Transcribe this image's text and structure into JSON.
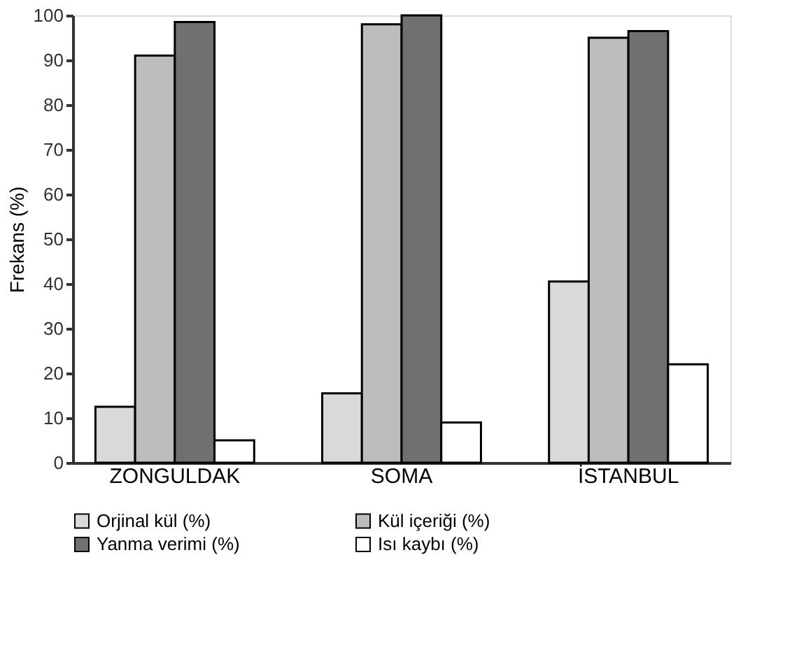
{
  "chart_data": {
    "type": "bar",
    "ylabel": "Frekans (%)",
    "categories": [
      "ZONGULDAK",
      "SOMA",
      "İSTANBUL"
    ],
    "series": [
      {
        "name": "Orjinal kül (%)",
        "color": "#d9d9d9",
        "values": [
          12.5,
          15.5,
          40.5
        ]
      },
      {
        "name": "Kül içeriği (%)",
        "color": "#bdbdbd",
        "values": [
          91,
          98,
          95
        ]
      },
      {
        "name": "Yanma verimi (%)",
        "color": "#707070",
        "values": [
          98.5,
          100,
          96.5
        ]
      },
      {
        "name": "Isı kaybı (%)",
        "color": "#ffffff",
        "values": [
          5,
          9,
          22
        ]
      }
    ],
    "ylim": [
      0,
      100
    ],
    "yticks": [
      0,
      10,
      20,
      30,
      40,
      50,
      60,
      70,
      80,
      90,
      100
    ],
    "grid": false,
    "legend": "bottom"
  }
}
